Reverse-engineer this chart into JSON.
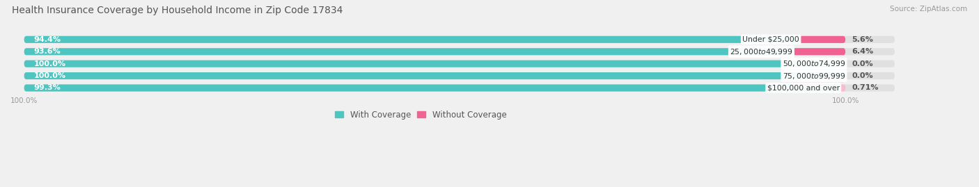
{
  "title": "Health Insurance Coverage by Household Income in Zip Code 17834",
  "source": "Source: ZipAtlas.com",
  "categories": [
    "Under $25,000",
    "$25,000 to $49,999",
    "$50,000 to $74,999",
    "$75,000 to $99,999",
    "$100,000 and over"
  ],
  "with_coverage": [
    94.4,
    93.6,
    100.0,
    100.0,
    99.3
  ],
  "without_coverage": [
    5.6,
    6.4,
    0.0,
    0.0,
    0.71
  ],
  "with_coverage_labels": [
    "94.4%",
    "93.6%",
    "100.0%",
    "100.0%",
    "99.3%"
  ],
  "without_coverage_labels": [
    "5.6%",
    "6.4%",
    "0.0%",
    "0.0%",
    "0.71%"
  ],
  "color_with": "#4ec5c1",
  "color_without_saturated": "#f06292",
  "color_without_light": "#f8bbd0",
  "color_label_with": "#ffffff",
  "bg_color": "#f0f0f0",
  "bar_bg_color": "#e0e0e0",
  "legend_with": "With Coverage",
  "legend_without": "Without Coverage"
}
